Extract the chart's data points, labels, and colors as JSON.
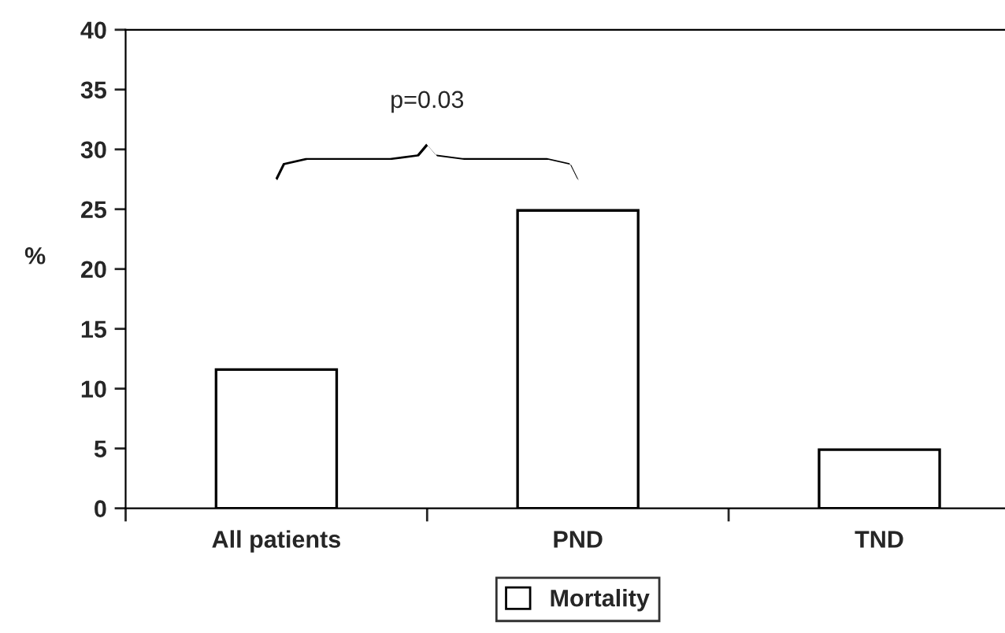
{
  "chart_data": {
    "type": "bar",
    "ylabel": "%",
    "categories": [
      "All patients",
      "PND",
      "TND"
    ],
    "series": [
      {
        "name": "Mortality",
        "color": "#ffffff",
        "values": [
          11.6,
          24.9,
          4.9
        ]
      }
    ],
    "ylim": [
      0,
      40
    ],
    "yticks": [
      0,
      5,
      10,
      15,
      20,
      25,
      30,
      35,
      40
    ],
    "grid": false,
    "legend": "bottom",
    "annotations": [
      "p=0.03"
    ]
  }
}
